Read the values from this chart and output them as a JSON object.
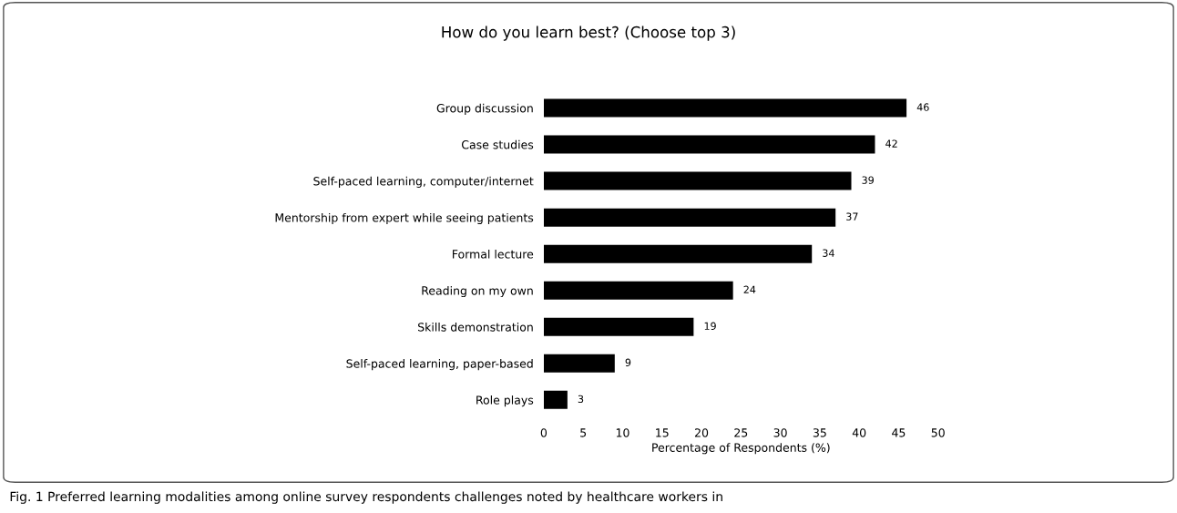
{
  "chart_data": {
    "type": "bar",
    "orientation": "horizontal",
    "title": "How do you learn best? (Choose top 3)",
    "xlabel": "Percentage of Respondents (%)",
    "categories": [
      "Group discussion",
      "Case studies",
      "Self-paced learning, computer/internet",
      "Mentorship from expert while seeing patients",
      "Formal lecture",
      "Reading on my own",
      "Skills demonstration",
      "Self-paced learning, paper-based",
      "Role plays"
    ],
    "values": [
      46,
      42,
      39,
      37,
      34,
      24,
      19,
      9,
      3
    ],
    "color": "#000000",
    "data_labels": true,
    "xlim": [
      0,
      50
    ],
    "xticks": [
      0,
      5,
      10,
      15,
      20,
      25,
      30,
      35,
      40,
      45,
      50
    ],
    "grid": false,
    "legend": false,
    "annotations": [
      "Fig. 1 Preferred learning modalities among online survey respondents challenges noted by healthcare workers in"
    ]
  }
}
